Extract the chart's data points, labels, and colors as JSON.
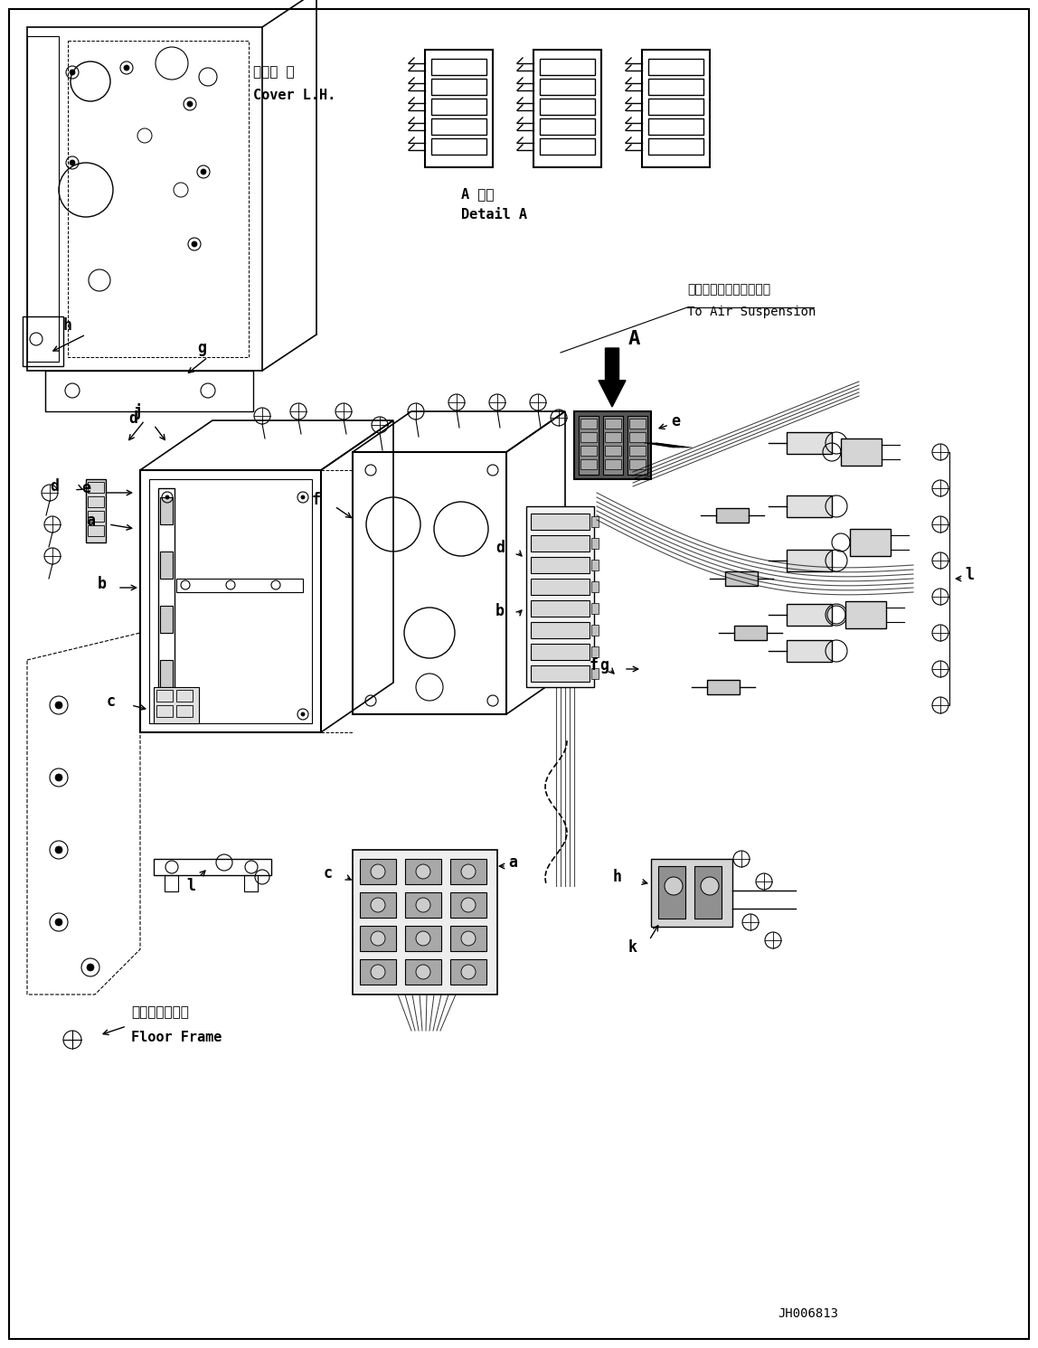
{
  "background_color": "#ffffff",
  "line_color": "#000000",
  "annotations": {
    "cover_lh_jp": "カバー 左",
    "cover_lh_en": "Cover L.H.",
    "detail_a_jp": "A 詳細",
    "detail_a_en": "Detail A",
    "air_susp_jp": "エアーサスペンションへ",
    "air_susp_en": "To Air Suspension",
    "floor_frame_jp": "フロアフレーム",
    "floor_frame_en": "Floor Frame",
    "part_id": "JH006813",
    "label_A": "A"
  },
  "fig_width": 11.48,
  "fig_height": 14.91,
  "dpi": 100
}
